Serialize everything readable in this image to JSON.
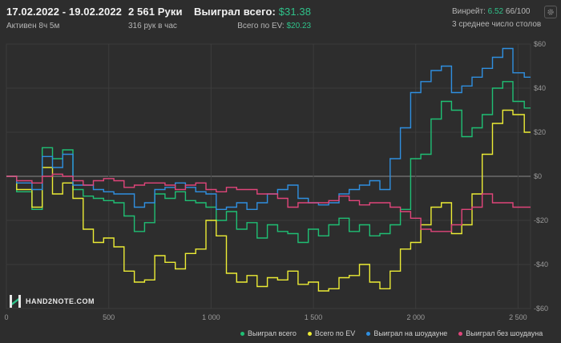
{
  "header": {
    "date_range": "17.02.2022 - 19.02.2022",
    "active": "Активен 8ч 5м",
    "hands": "2 561 Руки",
    "hands_per_hour": "316 рук в час",
    "won_label": "Выиграл всего:",
    "won_value": "$31.38",
    "ev_label": "Всего по EV:",
    "ev_value": "$20.23",
    "winrate_label": "Винрейт:",
    "winrate_value": "6.52",
    "winrate_suffix": "66/100",
    "avg_tables": "3 среднее число столов"
  },
  "logo": {
    "text": "HAND2NOTE.COM"
  },
  "colors": {
    "background": "#2d2d2d",
    "won_total": "#1fbf74",
    "ev_total": "#ecec35",
    "showdown": "#2f8fe0",
    "no_showdown": "#e0457a"
  },
  "chart_data": {
    "type": "line",
    "x_ticks": [
      0,
      500,
      1000,
      1500,
      2000,
      2500
    ],
    "x_tick_labels": [
      "0",
      "500",
      "1 000",
      "1 500",
      "2 000",
      "2 500"
    ],
    "y_ticks": [
      60,
      40,
      20,
      0,
      -20,
      -40,
      -60
    ],
    "y_tick_labels": [
      "$60",
      "$40",
      "$20",
      "$0",
      "-$20",
      "-$40",
      "-$60"
    ],
    "xlim": [
      0,
      2561
    ],
    "ylim": [
      -60,
      60
    ],
    "x": [
      0,
      100,
      150,
      200,
      250,
      300,
      350,
      400,
      450,
      500,
      550,
      600,
      650,
      700,
      750,
      800,
      850,
      900,
      950,
      1000,
      1050,
      1100,
      1150,
      1200,
      1250,
      1300,
      1350,
      1400,
      1450,
      1500,
      1550,
      1600,
      1650,
      1700,
      1750,
      1800,
      1850,
      1900,
      1950,
      2000,
      2050,
      2100,
      2150,
      2200,
      2250,
      2300,
      2350,
      2400,
      2450,
      2500,
      2561
    ],
    "series": [
      {
        "name": "Выиграл всего",
        "color": "#1fbf74",
        "values": [
          0,
          -7,
          -15,
          13,
          8,
          12,
          -6,
          -9,
          -10,
          -11,
          -12,
          -18,
          -25,
          -21,
          -8,
          -10,
          -7,
          -11,
          -12,
          -14,
          -20,
          -16,
          -24,
          -21,
          -28,
          -22,
          -25,
          -26,
          -30,
          -24,
          -27,
          -22,
          -19,
          -25,
          -22,
          -27,
          -26,
          -22,
          -15,
          8,
          10,
          26,
          34,
          30,
          18,
          22,
          28,
          40,
          43,
          34,
          31
        ]
      },
      {
        "name": "Всего по EV",
        "color": "#ecec35",
        "values": [
          0,
          -6,
          -14,
          4,
          -8,
          -3,
          -10,
          -24,
          -30,
          -28,
          -32,
          -43,
          -48,
          -47,
          -36,
          -39,
          -42,
          -35,
          -33,
          -20,
          -27,
          -44,
          -48,
          -45,
          -50,
          -46,
          -47,
          -43,
          -49,
          -48,
          -52,
          -51,
          -46,
          -45,
          -40,
          -48,
          -51,
          -43,
          -33,
          -30,
          -22,
          -14,
          -12,
          -26,
          -22,
          -8,
          10,
          24,
          30,
          28,
          20
        ]
      },
      {
        "name": "Выиграл на шоудауне",
        "color": "#2f8fe0",
        "values": [
          0,
          -3,
          -6,
          9,
          4,
          10,
          -4,
          -4,
          -6,
          -7,
          -8,
          -8,
          -14,
          -12,
          -6,
          -5,
          -3,
          -5,
          -7,
          -8,
          -15,
          -14,
          -12,
          -15,
          -12,
          -8,
          -6,
          -4,
          -10,
          -12,
          -13,
          -12,
          -8,
          -6,
          -4,
          -2,
          -6,
          8,
          22,
          38,
          43,
          48,
          50,
          38,
          41,
          45,
          49,
          54,
          58,
          47,
          45
        ]
      },
      {
        "name": "Выиграл без шоудауна",
        "color": "#e0457a",
        "values": [
          0,
          -2,
          -3,
          0,
          1,
          0,
          -2,
          -4,
          -2,
          -1,
          -2,
          -5,
          -4,
          -3,
          -3,
          -4,
          -6,
          -4,
          -3,
          -6,
          -7,
          -5,
          -6,
          -6,
          -8,
          -8,
          -10,
          -14,
          -12,
          -12,
          -12,
          -11,
          -9,
          -11,
          -13,
          -12,
          -12,
          -14,
          -16,
          -19,
          -24,
          -25,
          -25,
          -22,
          -15,
          -14,
          -8,
          -12,
          -12,
          -14,
          -14
        ]
      }
    ]
  }
}
